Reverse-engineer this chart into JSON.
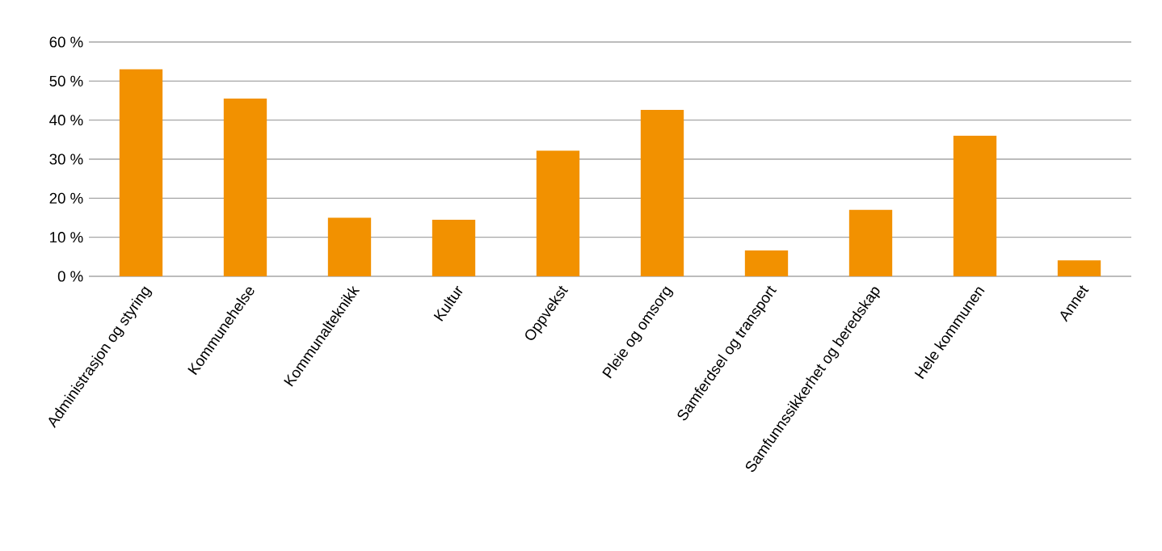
{
  "chart_data": {
    "type": "bar",
    "categories": [
      "Administrasjon og styring",
      "Kommunehelse",
      "Kommunalteknikk",
      "Kultur",
      "Oppvekst",
      "Pleie og omsorg",
      "Samferdsel og transport",
      "Samfunnssikkerhet og beredskap",
      "Hele kommunen",
      "Annet"
    ],
    "values": [
      53,
      45.5,
      15,
      14.5,
      32.2,
      42.6,
      6.6,
      17,
      36,
      4.1
    ],
    "color": "#f29100",
    "ylim": [
      0,
      60
    ],
    "yticks": [
      {
        "value": 0,
        "label": "0 %"
      },
      {
        "value": 10,
        "label": "10 %"
      },
      {
        "value": 20,
        "label": "20 %"
      },
      {
        "value": 30,
        "label": "30 %"
      },
      {
        "value": 40,
        "label": "40 %"
      },
      {
        "value": 50,
        "label": "50 %"
      },
      {
        "value": 60,
        "label": "60 %"
      }
    ],
    "grid": "y"
  }
}
